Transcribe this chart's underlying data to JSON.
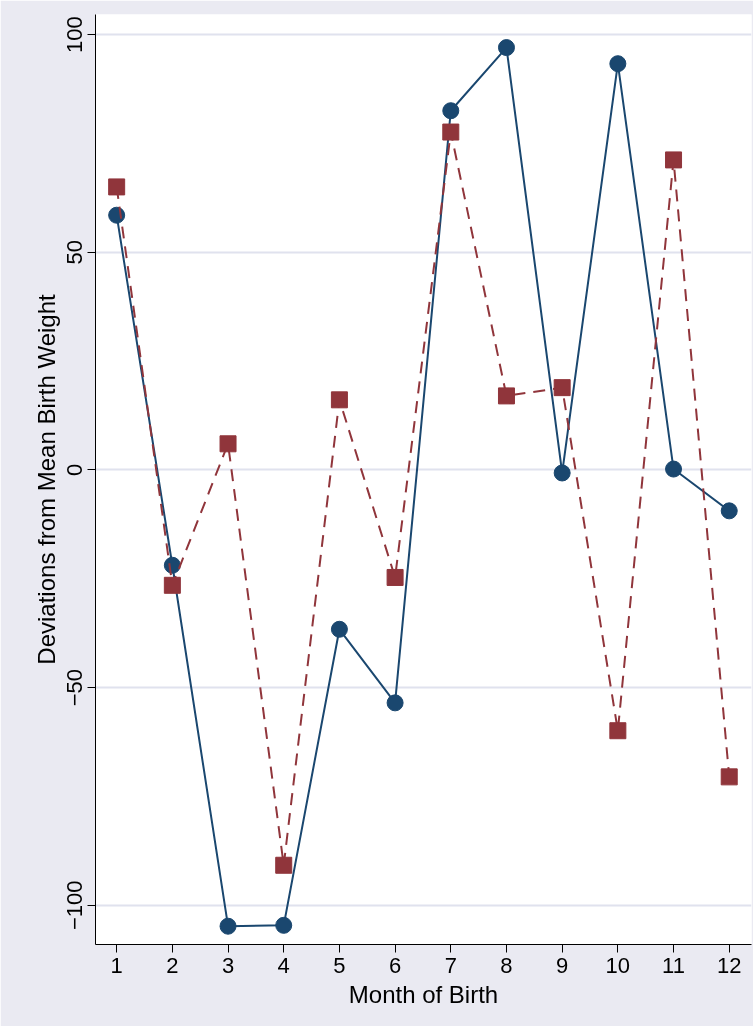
{
  "chart_data": {
    "type": "line",
    "xlabel": "Month of Birth",
    "ylabel": "Deviations from Mean Birth Weight",
    "x": [
      1,
      2,
      3,
      4,
      5,
      6,
      7,
      8,
      9,
      10,
      11,
      12
    ],
    "series": [
      {
        "color": "#1a476f",
        "marker": "circle",
        "line_style": "solid",
        "values": [
          58.5,
          -21.9,
          -104.8,
          -104.6,
          -36.6,
          -53.5,
          82.5,
          97,
          -0.7,
          93.3,
          0.2,
          -9.4
        ]
      },
      {
        "color": "#90353b",
        "marker": "square",
        "line_style": "dashed",
        "values": [
          65,
          -26.5,
          6,
          -90.8,
          16.1,
          -24.7,
          77.6,
          17,
          18.9,
          -59.9,
          71.2,
          -70.5
        ]
      }
    ],
    "xlim": [
      0.62,
      12.4
    ],
    "ylim": [
      -109,
      104.6
    ],
    "xticks": [
      1,
      2,
      3,
      4,
      5,
      6,
      7,
      8,
      9,
      10,
      11,
      12
    ],
    "yticks": [
      {
        "value": -100,
        "label": "−100"
      },
      {
        "value": -50,
        "label": "−50"
      },
      0,
      50,
      100
    ],
    "grid": "y"
  }
}
